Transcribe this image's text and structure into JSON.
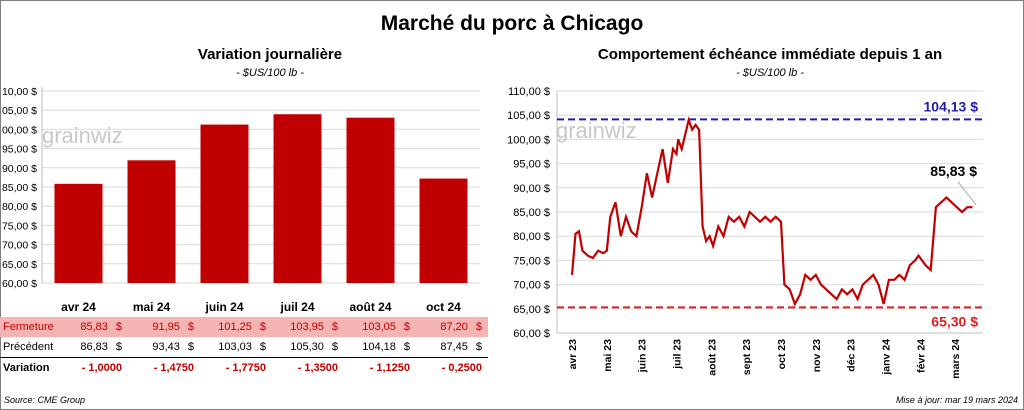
{
  "main_title": "Marché du porc à Chicago",
  "left": {
    "title": "Variation journalière",
    "unit": "- $US/100 lb -",
    "yticks": [
      "10,00 $",
      "05,00 $",
      "00,00 $",
      "95,00 $",
      "90,00 $",
      "85,00 $",
      "80,00 $",
      "75,00 $",
      "70,00 $",
      "65,00 $",
      "60,00 $"
    ],
    "table": {
      "rows": [
        {
          "label": "Fermeture",
          "values": [
            "85,83",
            "91,95",
            "101,25",
            "103,95",
            "103,05",
            "87,20"
          ],
          "unit": "$"
        },
        {
          "label": "Précédent",
          "values": [
            "86,83",
            "93,43",
            "103,03",
            "105,30",
            "104,18",
            "87,45"
          ],
          "unit": "$"
        },
        {
          "label": "Variation",
          "values": [
            "- 1,0000",
            "- 1,4750",
            "- 1,7750",
            "- 1,3500",
            "- 1,1250",
            "- 0,2500"
          ],
          "unit": ""
        }
      ]
    }
  },
  "right": {
    "title": "Comportement échéance immédiate depuis 1 an",
    "unit": "- $US/100 lb -",
    "yticks": [
      "110,00 $",
      "105,00 $",
      "100,00 $",
      "95,00 $",
      "90,00 $",
      "85,00 $",
      "80,00 $",
      "75,00 $",
      "70,00 $",
      "65,00 $",
      "60,00 $"
    ],
    "xticks": [
      "avr 23",
      "mai 23",
      "juin 23",
      "juil 23",
      "août 23",
      "sept 23",
      "oct 23",
      "nov 23",
      "déc 23",
      "janv 24",
      "févr 24",
      "mars 24"
    ],
    "high_label": "104,13 $",
    "low_label": "65,30 $",
    "last_label": "85,83 $"
  },
  "watermark": "grainwiz",
  "source": "Source: CME Group",
  "updated": "Mise à jour: mar 19 mars 2024",
  "colors": {
    "bar": "#c00000",
    "line": "#c00000",
    "high": "#1f1fa8",
    "low": "#e02020"
  },
  "chart_data": [
    {
      "type": "bar",
      "title": "Variation journalière",
      "ylabel": "- $US/100 lb -",
      "categories": [
        "avr 24",
        "mai 24",
        "juin 24",
        "juil 24",
        "août 24",
        "oct 24"
      ],
      "values": [
        85.83,
        91.95,
        101.25,
        103.95,
        103.05,
        87.2
      ],
      "ylim": [
        60,
        110
      ],
      "grid": true
    },
    {
      "type": "line",
      "title": "Comportement échéance immédiate depuis 1 an",
      "ylabel": "- $US/100 lb -",
      "ylim": [
        60,
        110
      ],
      "x": [
        0,
        0.1,
        0.2,
        0.3,
        0.45,
        0.6,
        0.75,
        0.9,
        1.0,
        1.1,
        1.25,
        1.4,
        1.55,
        1.7,
        1.85,
        2.0,
        2.15,
        2.3,
        2.45,
        2.6,
        2.75,
        2.9,
        3.0,
        3.05,
        3.15,
        3.25,
        3.35,
        3.45,
        3.55,
        3.65,
        3.75,
        3.85,
        3.95,
        4.05,
        4.2,
        4.35,
        4.5,
        4.65,
        4.8,
        4.95,
        5.1,
        5.25,
        5.4,
        5.55,
        5.7,
        5.85,
        6.0,
        6.1,
        6.25,
        6.4,
        6.55,
        6.7,
        6.85,
        7.0,
        7.15,
        7.3,
        7.45,
        7.6,
        7.75,
        7.9,
        8.05,
        8.2,
        8.35,
        8.5,
        8.65,
        8.8,
        8.95,
        9.1,
        9.25,
        9.4,
        9.55,
        9.7,
        9.85,
        9.95,
        10.05,
        10.15,
        10.3,
        10.45,
        10.6,
        10.75,
        10.9,
        11.05,
        11.2,
        11.35,
        11.5
      ],
      "series": [
        {
          "values": [
            72,
            80.5,
            81,
            77,
            76,
            75.5,
            77,
            76.5,
            77,
            84,
            87,
            80,
            84,
            81,
            80,
            86,
            93,
            88,
            93,
            98,
            91,
            98,
            97,
            100,
            98,
            101,
            104,
            102,
            103,
            102,
            82,
            79,
            80,
            78,
            82,
            80,
            84,
            83,
            84,
            82,
            85,
            84,
            83,
            84,
            83,
            84,
            83,
            70,
            69,
            66,
            68,
            72,
            71,
            72,
            70,
            69,
            68,
            67,
            69,
            68,
            69,
            67,
            70,
            71,
            72,
            70,
            66,
            71,
            71,
            72,
            71,
            74,
            75,
            76,
            75,
            74,
            73,
            86,
            87,
            88,
            87,
            86,
            85,
            86,
            86
          ]
        }
      ],
      "annotations": [
        "104,13 $",
        "65,30 $",
        "85,83 $"
      ]
    }
  ]
}
